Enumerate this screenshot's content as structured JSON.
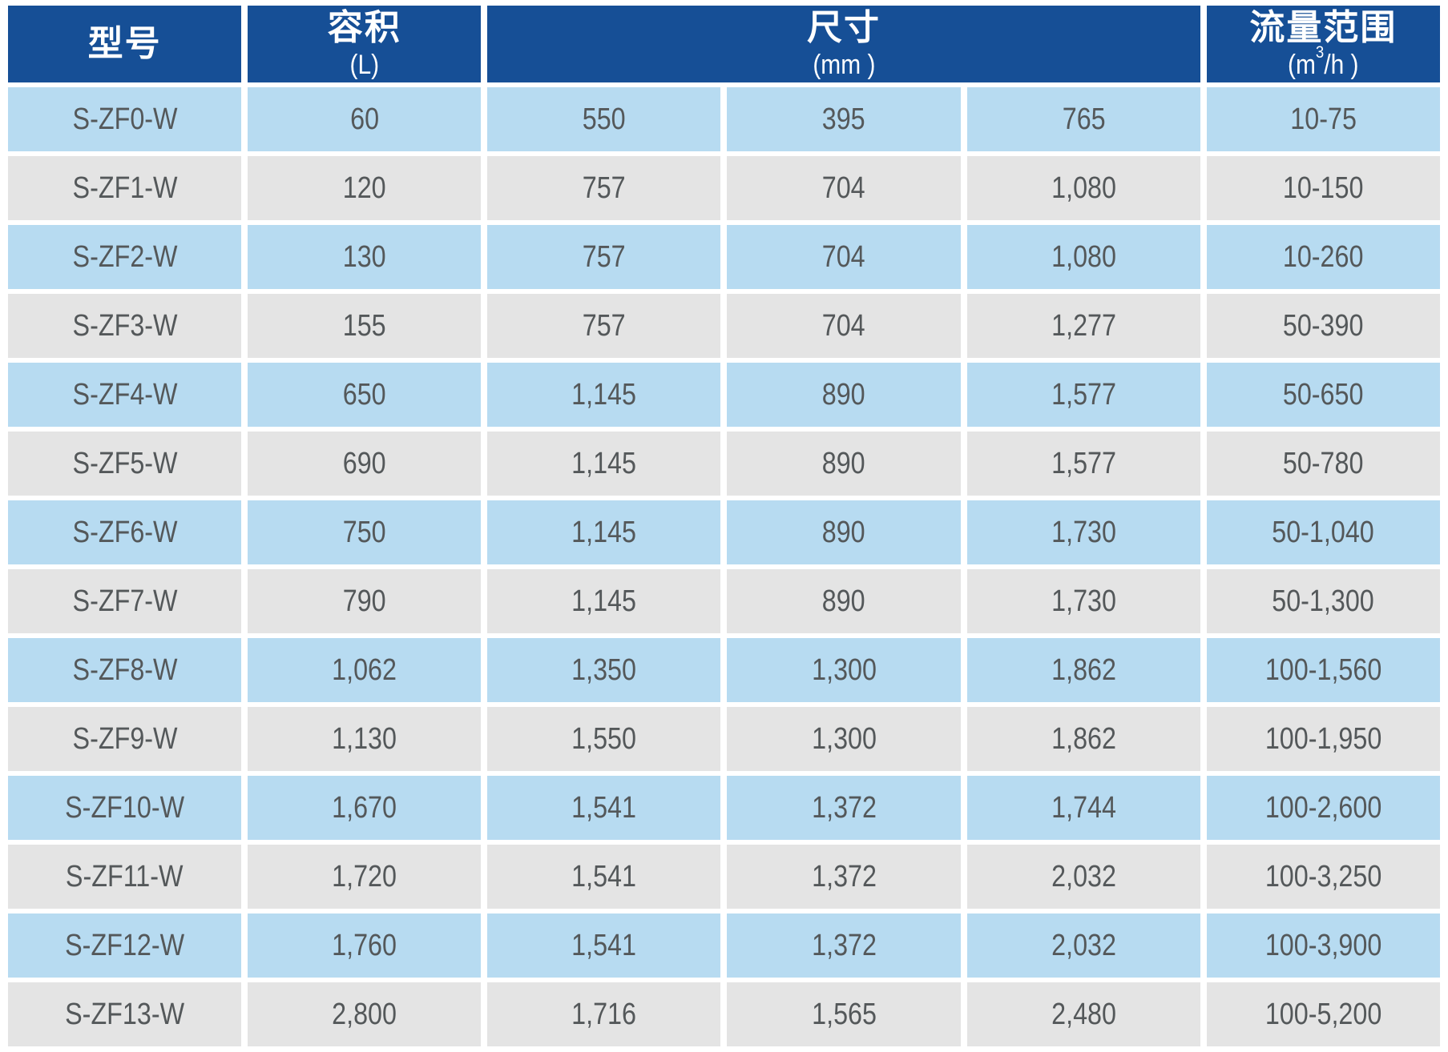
{
  "colors": {
    "header_bg": "#164f96",
    "header_text": "#ffffff",
    "row_blue": "#b7dbf1",
    "row_gray": "#e4e4e4",
    "cell_text": "#54585a",
    "gap": "#ffffff"
  },
  "table": {
    "header": {
      "model": {
        "label": "型号",
        "unit_prefix": "",
        "unit_sup": "",
        "unit_suffix": ""
      },
      "volume": {
        "label": "容积",
        "unit_prefix": "(L)",
        "unit_sup": "",
        "unit_suffix": ""
      },
      "dimensions": {
        "label": "尺寸",
        "unit_prefix": "(mm ",
        "unit_sup": "",
        "unit_suffix": ")",
        "colspan": 3
      },
      "flow": {
        "label": "流量范围",
        "unit_prefix": "(m",
        "unit_sup": "3",
        "unit_suffix": "/h )"
      }
    },
    "rows": [
      [
        "S-ZF0-W",
        "60",
        "550",
        "395",
        "765",
        "10-75"
      ],
      [
        "S-ZF1-W",
        "120",
        "757",
        "704",
        "1,080",
        "10-150"
      ],
      [
        "S-ZF2-W",
        "130",
        "757",
        "704",
        "1,080",
        "10-260"
      ],
      [
        "S-ZF3-W",
        "155",
        "757",
        "704",
        "1,277",
        "50-390"
      ],
      [
        "S-ZF4-W",
        "650",
        "1,145",
        "890",
        "1,577",
        "50-650"
      ],
      [
        "S-ZF5-W",
        "690",
        "1,145",
        "890",
        "1,577",
        "50-780"
      ],
      [
        "S-ZF6-W",
        "750",
        "1,145",
        "890",
        "1,730",
        "50-1,040"
      ],
      [
        "S-ZF7-W",
        "790",
        "1,145",
        "890",
        "1,730",
        "50-1,300"
      ],
      [
        "S-ZF8-W",
        "1,062",
        "1,350",
        "1,300",
        "1,862",
        "100-1,560"
      ],
      [
        "S-ZF9-W",
        "1,130",
        "1,550",
        "1,300",
        "1,862",
        "100-1,950"
      ],
      [
        "S-ZF10-W",
        "1,670",
        "1,541",
        "1,372",
        "1,744",
        "100-2,600"
      ],
      [
        "S-ZF11-W",
        "1,720",
        "1,541",
        "1,372",
        "2,032",
        "100-3,250"
      ],
      [
        "S-ZF12-W",
        "1,760",
        "1,541",
        "1,372",
        "2,032",
        "100-3,900"
      ],
      [
        "S-ZF13-W",
        "2,800",
        "1,716",
        "1,565",
        "2,480",
        "100-5,200"
      ]
    ]
  }
}
